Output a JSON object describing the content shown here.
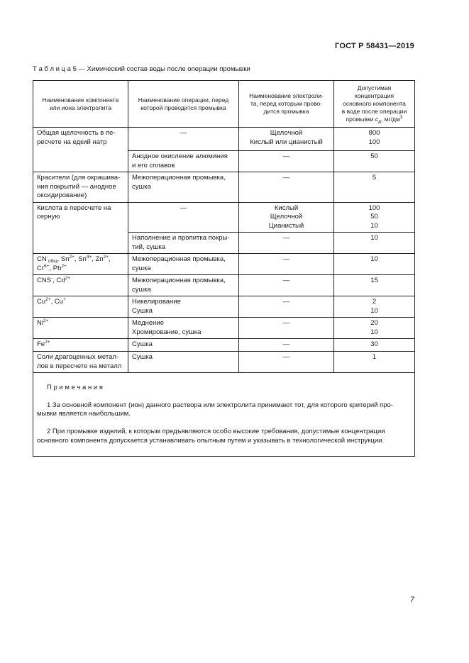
{
  "page": {
    "doc_code": "ГОСТ Р 58431—2019",
    "page_number": "7"
  },
  "table": {
    "caption": "Т а б л и ц а  5 — Химический состав воды после операции промывки",
    "headers": [
      "Наименование компонента\nили иона электролита",
      "Наименование операции, перед\nкоторой проводится промывка",
      "Наименование электроли-\nта, перед которым прово-\nдится промывка",
      "Допустимая\nконцентрация\nосновного компонента\nв воде после операции\nпромывки *{c}_{д}, мг/дм^{3}"
    ],
    "rows": [
      [
        "Общая щелочность в пе-\nресчете на едкий натр",
        "—",
        "Щелочной\nКислый или цианистый",
        "800\n100"
      ],
      [
        "Анодное окисление алюминия\nи его сплавов",
        "—",
        "50"
      ],
      [
        "Красители (для окрашива-\nния покрытий — анодное\nоксидирование)",
        "Межоперационная промывка,\nсушка",
        "—",
        "5"
      ],
      [
        "Кислота в пересчете на\nсерную",
        "—",
        "Кислый\nЩелочной\nЦианистый",
        "100\n50\n10"
      ],
      [
        "Наполнение и пропитка покры-\nтий, сушка",
        "—",
        "10"
      ],
      [
        "CN^{-}_{общ}, Sn^{2+}, Sn^{4+}, Zn^{2+},\nCr^{6+}, Pb^{2+}",
        "Межоперационная промывка,\nсушка",
        "—",
        "10"
      ],
      [
        "CNS^{-}, Cd^{2+}",
        "Межоперационная промывка,\nсушка",
        "—",
        "15"
      ],
      [
        "Cu^{2+}, Cu^{+}",
        "Никелирование\nСушка",
        "—",
        "2\n10"
      ],
      [
        "Ni^{2+}",
        "Меднение\nХромирование, сушка",
        "—",
        "20\n10"
      ],
      [
        "Fe^{2+}",
        "Сушка",
        "—",
        "30"
      ],
      [
        "Соли драгоценных метал-\nлов в пересчете на металл",
        "Сушка",
        "—",
        "1"
      ]
    ],
    "notes": {
      "heading": "П р и м е ч а н и я",
      "items": [
        "1 За основной компонент (ион) данного раствора или электролита принимают тот, для которого критерий про-\nмывки является наибольшим.",
        "2 При промывке изделий, к которым предъявляются особо высокие требования, допустимые концентрации\nосновного компонента допускается устанавливать опытным путем и указывать в технологической инструкции."
      ]
    }
  }
}
